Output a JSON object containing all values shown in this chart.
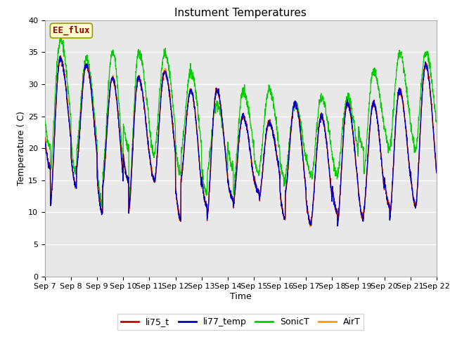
{
  "title": "Instument Temperatures",
  "xlabel": "Time",
  "ylabel": "Temperature ( C)",
  "ylim": [
    0,
    40
  ],
  "ytick_values": [
    0,
    5,
    10,
    15,
    20,
    25,
    30,
    35,
    40
  ],
  "xtick_labels": [
    "Sep 7",
    "Sep 8",
    "Sep 9",
    "Sep 10",
    "Sep 11",
    "Sep 12",
    "Sep 13",
    "Sep 14",
    "Sep 15",
    "Sep 16",
    "Sep 17",
    "Sep 18",
    "Sep 19",
    "Sep 20",
    "Sep 21",
    "Sep 22"
  ],
  "series_colors": {
    "li75_t": "#cc0000",
    "li77_temp": "#0000cc",
    "SonicT": "#00cc00",
    "AirT": "#ff9900"
  },
  "annotation_text": "EE_flux",
  "annotation_color": "#8b0000",
  "annotation_bg": "#ffffcc",
  "annotation_edge": "#999900",
  "fig_bg_color": "#ffffff",
  "plot_bg_color": "#e8e8e8",
  "grid_color": "#ffffff",
  "title_fontsize": 11,
  "axis_label_fontsize": 9,
  "tick_fontsize": 8,
  "legend_fontsize": 9,
  "n_days": 15,
  "day_peaks_li75": [
    34,
    33,
    31,
    31,
    32,
    29,
    29,
    25,
    24,
    27,
    25,
    27,
    27,
    29,
    33
  ],
  "day_mins_li75": [
    11,
    17,
    14,
    10,
    15,
    15,
    9,
    11,
    12,
    13,
    9,
    8,
    10,
    9,
    11
  ],
  "day_peaks_sonic": [
    37,
    34,
    35,
    35,
    35,
    32,
    27,
    29,
    29,
    27,
    28,
    28,
    32,
    35,
    35
  ],
  "day_mins_sonic": [
    17,
    20,
    16,
    11,
    20,
    19,
    16,
    13,
    17,
    16,
    15,
    16,
    16,
    20,
    20
  ],
  "peak_hour": 14,
  "min_hour": 5
}
